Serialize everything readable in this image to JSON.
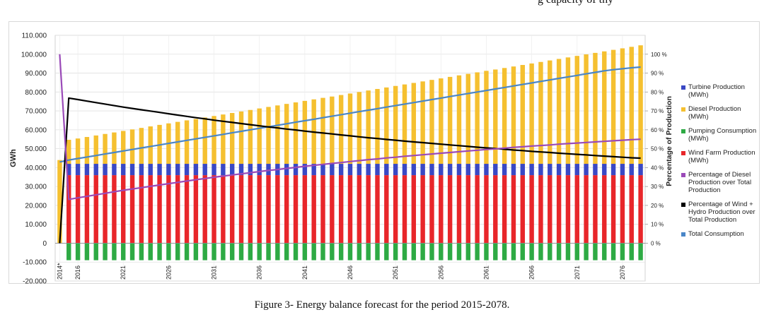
{
  "page": {
    "top_text": "g capacity of thy",
    "caption": "Figure 3- Energy balance forecast for the period 2015-2078."
  },
  "chart_data": {
    "type": "bar",
    "ylabel": "GWh",
    "y2label": "Percentage of Production",
    "ylim": [
      -20000,
      110000
    ],
    "y_ticks": [
      "-20.000",
      "-10.000",
      "0",
      "10.000",
      "20.000",
      "30.000",
      "40.000",
      "50.000",
      "60.000",
      "70.000",
      "80.000",
      "90.000",
      "100.000",
      "110.000"
    ],
    "y2lim": [
      0,
      100
    ],
    "y2_ticks": [
      "0 %",
      "10 %",
      "20 %",
      "30 %",
      "40 %",
      "50 %",
      "60 %",
      "70 %",
      "80 %",
      "90 %",
      "100 %"
    ],
    "x_tick_labels": [
      "2014*",
      "2016",
      "2021",
      "2026",
      "2031",
      "2036",
      "2041",
      "2046",
      "2051",
      "2056",
      "2061",
      "2066",
      "2071",
      "2076"
    ],
    "x_tick_years": [
      2014,
      2016,
      2021,
      2026,
      2031,
      2036,
      2041,
      2046,
      2051,
      2056,
      2061,
      2066,
      2071,
      2076
    ],
    "categories": [
      2014,
      2015,
      2016,
      2017,
      2018,
      2019,
      2020,
      2021,
      2022,
      2023,
      2024,
      2025,
      2026,
      2027,
      2028,
      2029,
      2030,
      2031,
      2032,
      2033,
      2034,
      2035,
      2036,
      2037,
      2038,
      2039,
      2040,
      2041,
      2042,
      2043,
      2044,
      2045,
      2046,
      2047,
      2048,
      2049,
      2050,
      2051,
      2052,
      2053,
      2054,
      2055,
      2056,
      2057,
      2058,
      2059,
      2060,
      2061,
      2062,
      2063,
      2064,
      2065,
      2066,
      2067,
      2068,
      2069,
      2070,
      2071,
      2072,
      2073,
      2074,
      2075,
      2076,
      2077,
      2078
    ],
    "grid": true,
    "legend_position": "right",
    "series": [
      {
        "name": "Wind Farm Production (MWh)",
        "kind": "stacked-bar",
        "axis": "left",
        "color": "#e8262a",
        "values": [
          0,
          36000,
          36000,
          36000,
          36000,
          36000,
          36000,
          36000,
          36000,
          36000,
          36000,
          36000,
          36000,
          36000,
          36000,
          36000,
          36000,
          36000,
          36000,
          36000,
          36000,
          36000,
          36000,
          36000,
          36000,
          36000,
          36000,
          36000,
          36000,
          36000,
          36000,
          36000,
          36000,
          36000,
          36000,
          36000,
          36000,
          36000,
          36000,
          36000,
          36000,
          36000,
          36000,
          36000,
          36000,
          36000,
          36000,
          36000,
          36000,
          36000,
          36000,
          36000,
          36000,
          36000,
          36000,
          36000,
          36000,
          36000,
          36000,
          36000,
          36000,
          36000,
          36000,
          36000,
          36000
        ]
      },
      {
        "name": "Turbine Production (MWh)",
        "kind": "stacked-bar",
        "axis": "left",
        "color": "#3a48c4",
        "values": [
          0,
          6000,
          6000,
          6000,
          6000,
          6000,
          6000,
          6000,
          6000,
          6000,
          6000,
          6000,
          6000,
          6000,
          6000,
          6000,
          6000,
          6000,
          6000,
          6000,
          6000,
          6000,
          6000,
          6000,
          6000,
          6000,
          6000,
          6000,
          6000,
          6000,
          6000,
          6000,
          6000,
          6000,
          6000,
          6000,
          6000,
          6000,
          6000,
          6000,
          6000,
          6000,
          6000,
          6000,
          6000,
          6000,
          6000,
          6000,
          6000,
          6000,
          6000,
          6000,
          6000,
          6000,
          6000,
          6000,
          6000,
          6000,
          6000,
          6000,
          6000,
          6000,
          6000,
          6000,
          6000
        ]
      },
      {
        "name": "Diesel Production (MWh)",
        "kind": "stacked-bar",
        "axis": "left",
        "color": "#f5c030",
        "values": [
          44000,
          12700,
          13400,
          14200,
          15000,
          15800,
          16600,
          17400,
          18200,
          19000,
          19800,
          20600,
          21400,
          22200,
          23000,
          23700,
          24500,
          25300,
          26100,
          26900,
          27700,
          28500,
          29300,
          30100,
          30900,
          31700,
          32500,
          33300,
          34100,
          34900,
          35600,
          36400,
          37200,
          38000,
          38800,
          39600,
          40400,
          41200,
          42000,
          42800,
          43600,
          44400,
          45200,
          46000,
          46800,
          47600,
          48400,
          49200,
          49900,
          50700,
          51500,
          52300,
          53100,
          53900,
          54700,
          55500,
          56300,
          57100,
          57900,
          58700,
          59500,
          60300,
          61100,
          61900,
          62700
        ]
      },
      {
        "name": "Pumping Consumption (MWh)",
        "kind": "bar",
        "axis": "left",
        "color": "#2eaa44",
        "values": [
          0,
          -9000,
          -9000,
          -9000,
          -9000,
          -9000,
          -9000,
          -9000,
          -9000,
          -9000,
          -9000,
          -9000,
          -9000,
          -9000,
          -9000,
          -9000,
          -9000,
          -9000,
          -9000,
          -9000,
          -9000,
          -9000,
          -9000,
          -9000,
          -9000,
          -9000,
          -9000,
          -9000,
          -9000,
          -9000,
          -9000,
          -9000,
          -9000,
          -9000,
          -9000,
          -9000,
          -9000,
          -9000,
          -9000,
          -9000,
          -9000,
          -9000,
          -9000,
          -9000,
          -9000,
          -9000,
          -9000,
          -9000,
          -9000,
          -9000,
          -9000,
          -9000,
          -9000,
          -9000,
          -9000,
          -9000,
          -9000,
          -9000,
          -9000,
          -9000,
          -9000,
          -9000,
          -9000,
          -9000,
          -9000
        ]
      },
      {
        "name": "Total Consumption",
        "kind": "line",
        "axis": "left",
        "color": "#4a86c8",
        "values": [
          43000,
          44000,
          44800,
          45600,
          46400,
          47200,
          48000,
          48800,
          49600,
          50400,
          51200,
          52000,
          52800,
          53600,
          54400,
          55200,
          56000,
          56800,
          57600,
          58400,
          59200,
          60000,
          60800,
          61600,
          62400,
          63200,
          64000,
          64800,
          65600,
          66400,
          67200,
          68000,
          68800,
          69600,
          70400,
          71200,
          72000,
          72800,
          73600,
          74400,
          75200,
          76000,
          76800,
          77600,
          78400,
          79200,
          80000,
          80800,
          81600,
          82400,
          83200,
          84000,
          84800,
          85600,
          86400,
          87200,
          88000,
          88800,
          89600,
          90400,
          91200,
          91800,
          92300,
          92800,
          93200
        ]
      },
      {
        "name": "Percentage of Wind + Hydro Production over Total Production",
        "kind": "line",
        "axis": "right",
        "color": "#000000",
        "values": [
          0,
          76.8,
          76.0,
          75.2,
          74.4,
          73.6,
          72.8,
          72.0,
          71.3,
          70.6,
          69.9,
          69.2,
          68.5,
          67.8,
          67.1,
          66.4,
          65.8,
          65.1,
          64.5,
          63.9,
          63.3,
          62.7,
          62.1,
          61.5,
          61.0,
          60.4,
          59.9,
          59.3,
          58.8,
          58.3,
          57.8,
          57.3,
          56.8,
          56.3,
          55.8,
          55.4,
          54.9,
          54.5,
          54.0,
          53.6,
          53.2,
          52.8,
          52.4,
          52.0,
          51.6,
          51.2,
          50.8,
          50.4,
          50.1,
          49.7,
          49.3,
          49.0,
          48.6,
          48.3,
          48.0,
          47.6,
          47.3,
          47.0,
          46.7,
          46.4,
          46.1,
          45.8,
          45.5,
          45.2,
          45.0
        ]
      },
      {
        "name": "Percentage of Diesel Production over Total Production",
        "kind": "line",
        "axis": "right",
        "color": "#9a4ab8",
        "values": [
          100,
          23.2,
          24.0,
          24.8,
          25.6,
          26.4,
          27.2,
          28.0,
          28.7,
          29.4,
          30.1,
          30.8,
          31.5,
          32.2,
          32.9,
          33.6,
          34.2,
          34.9,
          35.5,
          36.1,
          36.7,
          37.3,
          37.9,
          38.5,
          39.0,
          39.6,
          40.1,
          40.7,
          41.2,
          41.7,
          42.2,
          42.7,
          43.2,
          43.7,
          44.2,
          44.6,
          45.1,
          45.5,
          46.0,
          46.4,
          46.8,
          47.2,
          47.6,
          48.0,
          48.4,
          48.8,
          49.2,
          49.6,
          49.9,
          50.3,
          50.7,
          51.0,
          51.4,
          51.7,
          52.0,
          52.4,
          52.7,
          53.0,
          53.3,
          53.6,
          53.9,
          54.2,
          54.5,
          54.8,
          55.0
        ]
      }
    ],
    "legend": [
      {
        "label": "Turbine Production (MWh)",
        "color": "#3a48c4"
      },
      {
        "label": "Diesel Production (MWh)",
        "color": "#f5c030"
      },
      {
        "label": "Pumping Consumption (MWh)",
        "color": "#2eaa44"
      },
      {
        "label": "Wind Farm Production (MWh)",
        "color": "#e8262a"
      },
      {
        "label": "Percentage of Diesel Production over Total Production",
        "color": "#9a4ab8"
      },
      {
        "label": "Percentage of Wind + Hydro Production over Total Production",
        "color": "#000000"
      },
      {
        "label": "Total Consumption",
        "color": "#4a86c8"
      }
    ]
  }
}
